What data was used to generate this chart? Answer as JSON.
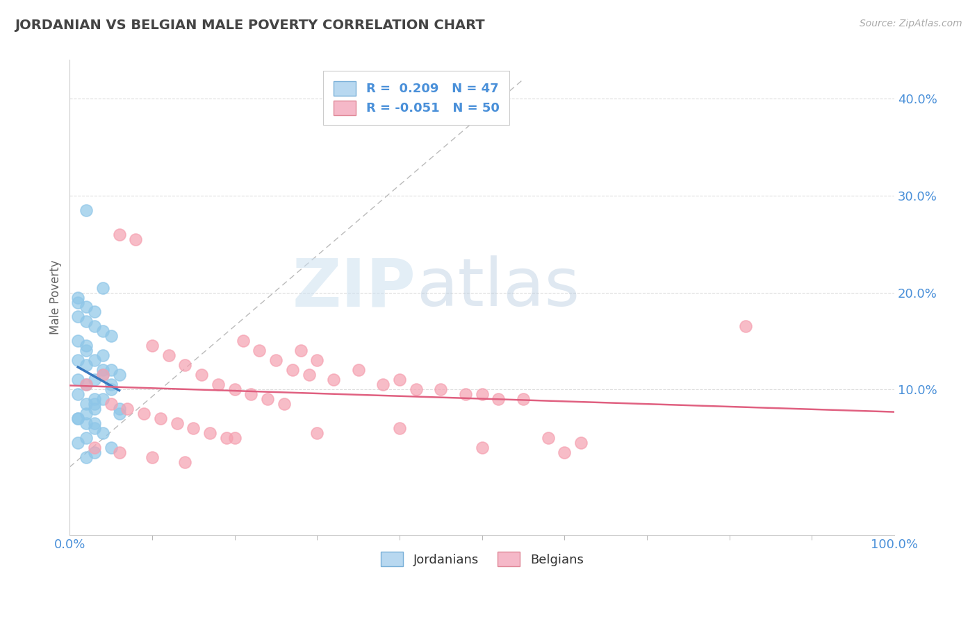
{
  "title": "JORDANIAN VS BELGIAN MALE POVERTY CORRELATION CHART",
  "source": "Source: ZipAtlas.com",
  "ylabel": "Male Poverty",
  "xlim": [
    0,
    1
  ],
  "ylim": [
    -0.05,
    0.44
  ],
  "yticks": [
    0.1,
    0.2,
    0.3,
    0.4
  ],
  "ytick_labels": [
    "10.0%",
    "20.0%",
    "30.0%",
    "40.0%"
  ],
  "xtick_labels": [
    "0.0%",
    "100.0%"
  ],
  "legend_R1": "0.209",
  "legend_N1": "47",
  "legend_R2": "-0.051",
  "legend_N2": "50",
  "color_jordan": "#8ec6e8",
  "color_belgium": "#f5a0b0",
  "color_jordan_line": "#3a7abf",
  "color_belgium_line": "#e06080",
  "background": "#ffffff",
  "grid_color": "#cccccc",
  "title_color": "#444444",
  "tick_color": "#4a90d9",
  "watermark_zip_color": "#c8dff0",
  "watermark_atlas_color": "#c0cfe8",
  "jordan_x": [
    0.02,
    0.04,
    0.01,
    0.03,
    0.05,
    0.06,
    0.02,
    0.03,
    0.01,
    0.04,
    0.02,
    0.01,
    0.03,
    0.05,
    0.02,
    0.04,
    0.01,
    0.03,
    0.06,
    0.02,
    0.01,
    0.03,
    0.04,
    0.02,
    0.05,
    0.01,
    0.03,
    0.02,
    0.04,
    0.01,
    0.02,
    0.03,
    0.05,
    0.01,
    0.04,
    0.02,
    0.03,
    0.06,
    0.01,
    0.02,
    0.03,
    0.04,
    0.02,
    0.01,
    0.05,
    0.03,
    0.02
  ],
  "jordan_y": [
    0.285,
    0.12,
    0.13,
    0.11,
    0.1,
    0.115,
    0.105,
    0.09,
    0.195,
    0.205,
    0.185,
    0.175,
    0.165,
    0.155,
    0.145,
    0.135,
    0.095,
    0.085,
    0.08,
    0.075,
    0.07,
    0.065,
    0.115,
    0.125,
    0.105,
    0.19,
    0.18,
    0.17,
    0.16,
    0.15,
    0.14,
    0.13,
    0.12,
    0.11,
    0.09,
    0.085,
    0.08,
    0.075,
    0.07,
    0.065,
    0.06,
    0.055,
    0.05,
    0.045,
    0.04,
    0.035,
    0.03
  ],
  "belgium_x": [
    0.02,
    0.04,
    0.06,
    0.08,
    0.1,
    0.12,
    0.14,
    0.16,
    0.18,
    0.2,
    0.22,
    0.24,
    0.26,
    0.28,
    0.3,
    0.35,
    0.4,
    0.45,
    0.5,
    0.55,
    0.05,
    0.07,
    0.09,
    0.11,
    0.13,
    0.15,
    0.17,
    0.19,
    0.21,
    0.23,
    0.25,
    0.27,
    0.29,
    0.32,
    0.38,
    0.42,
    0.48,
    0.52,
    0.58,
    0.62,
    0.03,
    0.06,
    0.1,
    0.14,
    0.2,
    0.3,
    0.4,
    0.5,
    0.6,
    0.82
  ],
  "belgium_y": [
    0.105,
    0.115,
    0.26,
    0.255,
    0.145,
    0.135,
    0.125,
    0.115,
    0.105,
    0.1,
    0.095,
    0.09,
    0.085,
    0.14,
    0.13,
    0.12,
    0.11,
    0.1,
    0.095,
    0.09,
    0.085,
    0.08,
    0.075,
    0.07,
    0.065,
    0.06,
    0.055,
    0.05,
    0.15,
    0.14,
    0.13,
    0.12,
    0.115,
    0.11,
    0.105,
    0.1,
    0.095,
    0.09,
    0.05,
    0.045,
    0.04,
    0.035,
    0.03,
    0.025,
    0.05,
    0.055,
    0.06,
    0.04,
    0.035,
    0.165
  ]
}
